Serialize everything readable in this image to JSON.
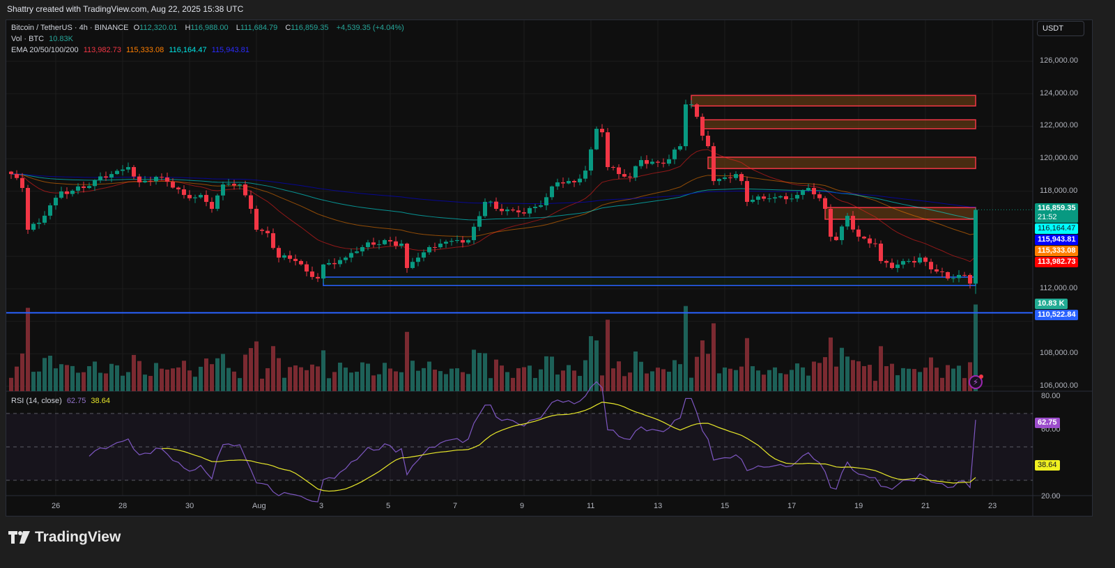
{
  "credit": "Shattry created with TradingView.com, Aug 22, 2025 15:38 UTC",
  "legend": {
    "symbol": "Bitcoin / TetherUS · 4h · BINANCE",
    "o_label": "O",
    "o": "112,320.01",
    "h_label": "H",
    "h": "116,988.00",
    "l_label": "L",
    "l": "111,684.79",
    "c_label": "C",
    "c": "116,859.35",
    "change": "+4,539.35 (+4.04%)",
    "vol_label": "Vol · BTC",
    "vol": "10.83K",
    "ema_label": "EMA 20/50/100/200",
    "ema20": "113,982.73",
    "ema50": "115,333.08",
    "ema100": "116,164.47",
    "ema200": "115,943.81",
    "rsi_label": "RSI (14, close)",
    "rsi": "62.75",
    "rsi_ma": "38.64"
  },
  "currency_button": "USDT",
  "price_tags": {
    "last": "116,859.35",
    "countdown": "21:52",
    "ema100": "116,164.47",
    "ema200": "115,943.81",
    "ema50": "115,333.08",
    "ema20": "113,982.73",
    "volume": "10.83 K",
    "level": "110,522.84",
    "rsi": "62.75",
    "rsi_ma": "38.64"
  },
  "colors": {
    "up": "#089981",
    "down": "#f23645",
    "ema20": "#ff2020",
    "ema50": "#ff7f00",
    "ema100": "#00ffff",
    "ema200": "#0000ff",
    "rsi": "#7e57c2",
    "rsi_ma": "#e8e82a",
    "level": "#2962ff",
    "zone": "#f23645"
  },
  "logo_text": "TradingView",
  "chart_data": {
    "type": "candlestick",
    "title": "Bitcoin / TetherUS · 4h · BINANCE",
    "ylim": [
      105700,
      128570
    ],
    "y_ticks": [
      126000,
      124000,
      122000,
      120000,
      118000,
      112000,
      108000,
      106000
    ],
    "y_tick_labels": [
      "126,000.00",
      "124,000.00",
      "122,000.00",
      "120,000.00",
      "118,000.00",
      "112,000.00",
      "108,000.00",
      "106,000.00"
    ],
    "x_ticks": [
      {
        "t": "2025-07-26T00:00",
        "label": "26"
      },
      {
        "t": "2025-07-28T00:00",
        "label": "28"
      },
      {
        "t": "2025-07-30T00:00",
        "label": "30"
      },
      {
        "t": "2025-08-01T00:00",
        "label": "Aug"
      },
      {
        "t": "2025-08-03T00:00",
        "label": "3"
      },
      {
        "t": "2025-08-05T00:00",
        "label": "5"
      },
      {
        "t": "2025-08-07T00:00",
        "label": "7"
      },
      {
        "t": "2025-08-09T00:00",
        "label": "9"
      },
      {
        "t": "2025-08-11T00:00",
        "label": "11"
      },
      {
        "t": "2025-08-13T00:00",
        "label": "13"
      },
      {
        "t": "2025-08-15T00:00",
        "label": "15"
      },
      {
        "t": "2025-08-17T00:00",
        "label": "17"
      },
      {
        "t": "2025-08-19T00:00",
        "label": "19"
      },
      {
        "t": "2025-08-21T00:00",
        "label": "21"
      },
      {
        "t": "2025-08-23T00:00",
        "label": "23"
      }
    ],
    "close_anchors": [
      [
        "2025-07-24T16:00",
        119060
      ],
      [
        "2025-07-25T00:00",
        118205
      ],
      [
        "2025-07-25T04:00",
        115635
      ],
      [
        "2025-07-25T12:00",
        116065
      ],
      [
        "2025-07-25T20:00",
        117135
      ],
      [
        "2025-07-26T04:00",
        117990
      ],
      [
        "2025-07-26T20:00",
        118205
      ],
      [
        "2025-07-27T16:00",
        119060
      ],
      [
        "2025-07-28T04:00",
        119490
      ],
      [
        "2025-07-28T12:00",
        118550
      ],
      [
        "2025-07-29T04:00",
        118850
      ],
      [
        "2025-07-29T20:00",
        117775
      ],
      [
        "2025-07-30T08:00",
        117775
      ],
      [
        "2025-07-30T16:00",
        116920
      ],
      [
        "2025-07-31T00:00",
        118420
      ],
      [
        "2025-07-31T12:00",
        118420
      ],
      [
        "2025-07-31T20:00",
        116920
      ],
      [
        "2025-08-01T00:00",
        115635
      ],
      [
        "2025-08-01T08:00",
        115420
      ],
      [
        "2025-08-01T16:00",
        113920
      ],
      [
        "2025-08-02T04:00",
        113710
      ],
      [
        "2025-08-02T12:00",
        113065
      ],
      [
        "2025-08-02T20:00",
        112635
      ],
      [
        "2025-08-03T00:00",
        113495
      ],
      [
        "2025-08-03T16:00",
        113920
      ],
      [
        "2025-08-04T04:00",
        114565
      ],
      [
        "2025-08-04T20:00",
        114995
      ],
      [
        "2025-08-05T08:00",
        114780
      ],
      [
        "2025-08-05T12:00",
        113280
      ],
      [
        "2025-08-05T20:00",
        113920
      ],
      [
        "2025-08-06T12:00",
        114780
      ],
      [
        "2025-08-07T00:00",
        114995
      ],
      [
        "2025-08-07T08:00",
        114995
      ],
      [
        "2025-08-07T20:00",
        117350
      ],
      [
        "2025-08-08T04:00",
        116920
      ],
      [
        "2025-08-08T20:00",
        116705
      ],
      [
        "2025-08-09T12:00",
        117135
      ],
      [
        "2025-08-10T00:00",
        118550
      ],
      [
        "2025-08-10T12:00",
        118550
      ],
      [
        "2025-08-10T20:00",
        119275
      ],
      [
        "2025-08-11T04:00",
        121845
      ],
      [
        "2025-08-11T08:00",
        121630
      ],
      [
        "2025-08-11T12:00",
        119490
      ],
      [
        "2025-08-11T20:00",
        119060
      ],
      [
        "2025-08-12T04:00",
        118850
      ],
      [
        "2025-08-12T12:00",
        119920
      ],
      [
        "2025-08-13T04:00",
        119700
      ],
      [
        "2025-08-13T16:00",
        120775
      ],
      [
        "2025-08-13T20:00",
        123345
      ],
      [
        "2025-08-14T00:00",
        123345
      ],
      [
        "2025-08-14T08:00",
        121420
      ],
      [
        "2025-08-14T12:00",
        120775
      ],
      [
        "2025-08-14T16:00",
        118630
      ],
      [
        "2025-08-15T00:00",
        118850
      ],
      [
        "2025-08-15T08:00",
        119060
      ],
      [
        "2025-08-15T12:00",
        118630
      ],
      [
        "2025-08-15T16:00",
        117350
      ],
      [
        "2025-08-16T08:00",
        117560
      ],
      [
        "2025-08-17T04:00",
        117775
      ],
      [
        "2025-08-17T12:00",
        118205
      ],
      [
        "2025-08-18T00:00",
        116920
      ],
      [
        "2025-08-18T04:00",
        115205
      ],
      [
        "2025-08-18T08:00",
        114995
      ],
      [
        "2025-08-18T16:00",
        116490
      ],
      [
        "2025-08-19T00:00",
        115205
      ],
      [
        "2025-08-19T12:00",
        114780
      ],
      [
        "2025-08-19T16:00",
        113710
      ],
      [
        "2025-08-20T00:00",
        113280
      ],
      [
        "2025-08-20T12:00",
        113710
      ],
      [
        "2025-08-20T20:00",
        113920
      ],
      [
        "2025-08-21T08:00",
        113065
      ],
      [
        "2025-08-21T16:00",
        112635
      ],
      [
        "2025-08-22T04:00",
        112850
      ],
      [
        "2025-08-22T08:00",
        112320.01
      ],
      [
        "2025-08-22T12:00",
        116859.35
      ]
    ],
    "last_bar": {
      "t": "2025-08-22T12:00",
      "open": 112320.01,
      "high": 116988.0,
      "low": 111684.79,
      "close": 116859.35,
      "volume_k": 10.83
    },
    "ema_periods": [
      20,
      50,
      100,
      200
    ],
    "zones": [
      {
        "from": "2025-08-14T00:00",
        "to": "2025-08-22T12:00",
        "low": 123250,
        "high": 123900,
        "color": "red"
      },
      {
        "from": "2025-08-14T08:00",
        "to": "2025-08-22T12:00",
        "low": 121850,
        "high": 122400,
        "color": "red"
      },
      {
        "from": "2025-08-14T12:00",
        "to": "2025-08-22T12:00",
        "low": 119400,
        "high": 120100,
        "color": "red"
      },
      {
        "from": "2025-08-18T00:00",
        "to": "2025-08-22T12:00",
        "low": 116280,
        "high": 117000,
        "color": "red"
      },
      {
        "from": "2025-08-03T00:00",
        "to": "2025-08-22T12:00",
        "low": 112200,
        "high": 112720,
        "color": "blue"
      }
    ],
    "horizontal_line": 110522.84,
    "rsi": {
      "period": 14,
      "ma_period": 14,
      "ylim": [
        20,
        80
      ],
      "bands": [
        70,
        50,
        30
      ],
      "y_tick_labels": [
        "80.00",
        "60.00",
        "20.00"
      ],
      "y_ticks": [
        80,
        60,
        20
      ]
    }
  }
}
